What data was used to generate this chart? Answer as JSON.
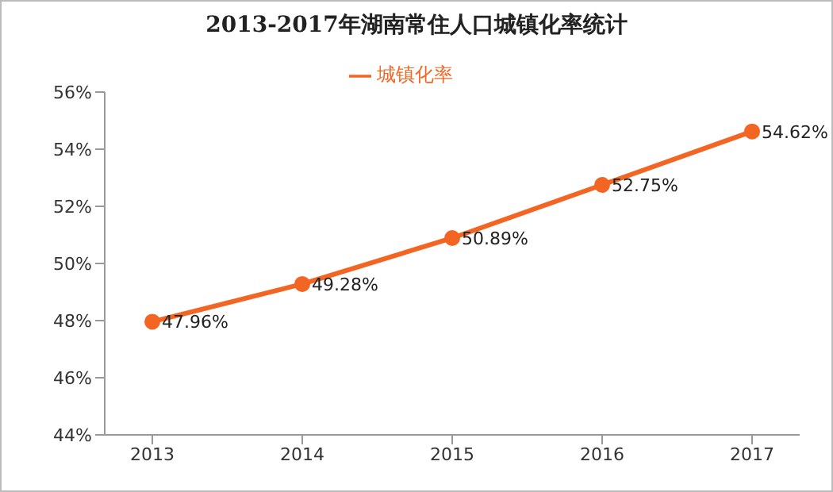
{
  "chart_data": {
    "type": "line",
    "title": "2013-2017年湖南常住人口城镇化率统计",
    "categories": [
      "2013",
      "2014",
      "2015",
      "2016",
      "2017"
    ],
    "series": [
      {
        "name": "城镇化率",
        "color": "#f26522",
        "values": [
          47.96,
          49.28,
          50.89,
          52.75,
          54.62
        ],
        "value_labels": [
          "47.96%",
          "49.28%",
          "50.89%",
          "52.75%",
          "54.62%"
        ]
      }
    ],
    "ylim": [
      44,
      56
    ],
    "yticks": [
      {
        "value": 44,
        "label": "44%"
      },
      {
        "value": 46,
        "label": "46%"
      },
      {
        "value": 48,
        "label": "48%"
      },
      {
        "value": 50,
        "label": "50%"
      },
      {
        "value": 52,
        "label": "52%"
      },
      {
        "value": 54,
        "label": "54%"
      },
      {
        "value": 56,
        "label": "56%"
      }
    ],
    "grid": false,
    "legend": "top",
    "marker": "circle",
    "line_style": "solid"
  }
}
